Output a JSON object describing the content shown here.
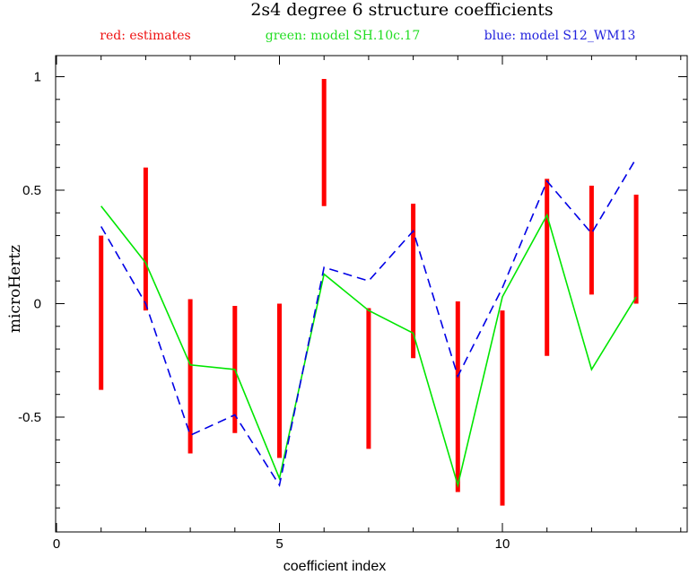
{
  "chart_data": {
    "type": "line",
    "title": "2s4 degree 6 structure coefficients",
    "xlabel": "coefficient index",
    "ylabel": "microHertz",
    "xlim": [
      -0.2,
      14.1
    ],
    "ylim": [
      -1.0,
      1.08
    ],
    "xticks": [
      0,
      5,
      10
    ],
    "yticks": [
      1,
      0.5,
      0,
      -0.5
    ],
    "ytick_labels": [
      "1",
      "0.5",
      "0",
      "-0.5"
    ],
    "minor_xtick_step": 1,
    "minor_ytick_step": 0.1,
    "grid": false,
    "legend_position": "top",
    "legend": [
      {
        "label": "red: estimates",
        "color": "#ee1111"
      },
      {
        "label": "green: model SH.10c.17",
        "color": "#22dd22"
      },
      {
        "label": "blue: model S12_WM13",
        "color": "#2222dd"
      }
    ],
    "estimates": {
      "name": "estimates",
      "color": "#ff0000",
      "style": "error-bar",
      "x": [
        1,
        2,
        3,
        4,
        5,
        6,
        7,
        8,
        9,
        10,
        11,
        12,
        13
      ],
      "low": [
        -0.38,
        -0.03,
        -0.66,
        -0.57,
        -0.68,
        0.43,
        -0.64,
        -0.24,
        -0.83,
        -0.89,
        -0.23,
        0.04,
        0.0
      ],
      "high": [
        0.3,
        0.6,
        0.02,
        -0.01,
        0.0,
        0.99,
        -0.02,
        0.44,
        0.01,
        -0.03,
        0.55,
        0.52,
        0.48
      ]
    },
    "series": [
      {
        "name": "model SH.10c.17",
        "color": "#00e600",
        "dash": "solid",
        "x": [
          1,
          2,
          3,
          4,
          5,
          6,
          7,
          8,
          9,
          10,
          11,
          12,
          13
        ],
        "y": [
          0.43,
          0.18,
          -0.27,
          -0.29,
          -0.77,
          0.13,
          -0.03,
          -0.13,
          -0.8,
          0.03,
          0.39,
          -0.29,
          0.03
        ]
      },
      {
        "name": "model S12_WM13",
        "color": "#0000e6",
        "dash": "dashed",
        "x": [
          1,
          2,
          3,
          4,
          5,
          6,
          7,
          8,
          9,
          10,
          11,
          12,
          13
        ],
        "y": [
          0.34,
          0.0,
          -0.58,
          -0.49,
          -0.8,
          0.16,
          0.1,
          0.32,
          -0.32,
          0.07,
          0.54,
          0.31,
          0.64
        ]
      }
    ]
  }
}
